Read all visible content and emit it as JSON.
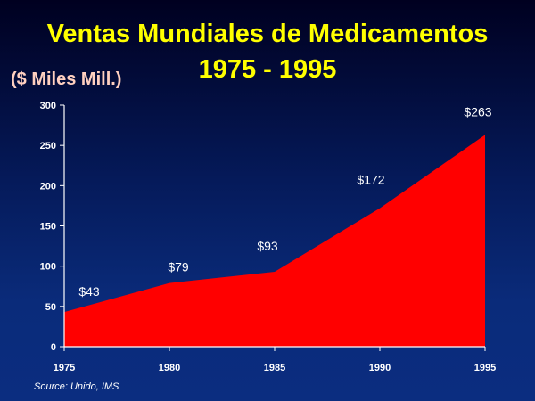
{
  "title": "Ventas Mundiales de Medicamentos",
  "subtitle": "1975 - 1995",
  "unit_label": "($ Miles Mill.)",
  "source": "Source: Unido, IMS",
  "colors": {
    "area_fill": "#ff0000",
    "title": "#ffff00",
    "unit_label": "#ffd0c0",
    "axis": "#ffffff",
    "text": "#ffffff"
  },
  "chart_data": {
    "type": "area",
    "title": "Ventas Mundiales de Medicamentos",
    "subtitle": "1975 - 1995",
    "ylabel": "($ Miles Mill.)",
    "xlabel": "",
    "x": [
      "1975",
      "1980",
      "1985",
      "1990",
      "1995"
    ],
    "y_ticks": [
      "0",
      "50",
      "100",
      "150",
      "200",
      "250",
      "300"
    ],
    "ylim": [
      0,
      300
    ],
    "grid": false,
    "legend": "none",
    "series": [
      {
        "values": [
          43,
          79,
          93,
          172,
          263
        ],
        "data_labels": [
          "$43",
          "$79",
          "$93",
          "$172",
          "$263"
        ]
      }
    ]
  }
}
